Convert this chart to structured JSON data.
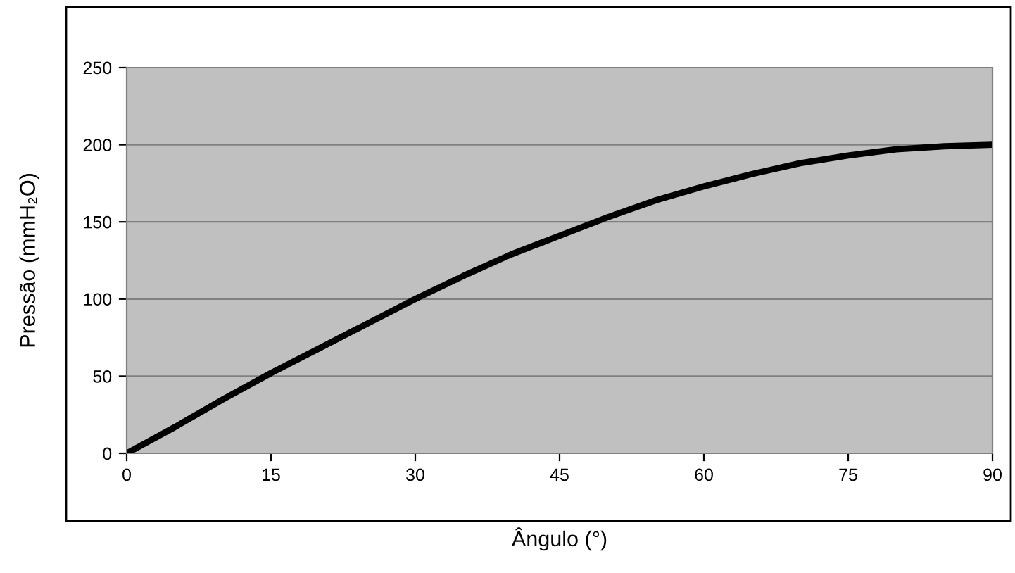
{
  "chart_data": {
    "type": "line",
    "xlabel": "Ângulo (°)",
    "ylabel": "Pressão (mmH₂O)",
    "x": [
      0,
      5,
      10,
      15,
      20,
      25,
      30,
      35,
      40,
      45,
      50,
      55,
      60,
      65,
      70,
      75,
      80,
      85,
      90
    ],
    "series": [
      {
        "color": "#000000",
        "values": [
          0,
          17,
          35,
          52,
          68,
          84,
          100,
          115,
          129,
          141,
          153,
          164,
          173,
          181,
          188,
          193,
          197,
          199,
          200
        ]
      }
    ],
    "xlim": [
      0,
      90
    ],
    "xticks": [
      0,
      15,
      30,
      45,
      60,
      75,
      90
    ],
    "ylim": [
      0,
      250
    ],
    "yticks": [
      0,
      50,
      100,
      150,
      200,
      250
    ],
    "grid": "y",
    "legend": false,
    "marker": "none",
    "line_style": "solid"
  }
}
